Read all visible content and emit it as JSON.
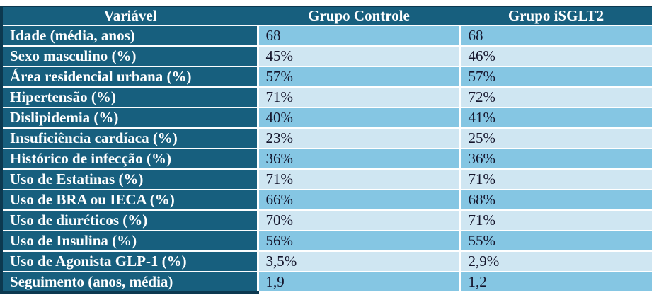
{
  "table": {
    "headers": {
      "variable": "Variável",
      "controle": "Grupo Controle",
      "isglt2": "Grupo iSGLT2"
    },
    "rows": [
      {
        "label": "Idade (média, anos)",
        "controle": "68",
        "isglt2": "68"
      },
      {
        "label": "Sexo masculino (%)",
        "controle": "45%",
        "isglt2": "46%"
      },
      {
        "label": "Área residencial urbana (%)",
        "controle": "57%",
        "isglt2": "57%"
      },
      {
        "label": "Hipertensão (%)",
        "controle": "71%",
        "isglt2": "72%"
      },
      {
        "label": "Dislipidemia (%)",
        "controle": "40%",
        "isglt2": "41%"
      },
      {
        "label": "Insuficiência cardíaca (%)",
        "controle": "23%",
        "isglt2": "25%"
      },
      {
        "label": "Histórico de infecção (%)",
        "controle": "36%",
        "isglt2": "36%"
      },
      {
        "label": "Uso de Estatinas (%)",
        "controle": "71%",
        "isglt2": "71%"
      },
      {
        "label": "Uso de BRA ou IECA (%)",
        "controle": "66%",
        "isglt2": "68%"
      },
      {
        "label": "Uso de diuréticos (%)",
        "controle": "70%",
        "isglt2": "71%"
      },
      {
        "label": "Uso de Insulina (%)",
        "controle": "56%",
        "isglt2": "55%"
      },
      {
        "label": "Uso de Agonista GLP-1 (%)",
        "controle": "3,5%",
        "isglt2": "2,9%"
      },
      {
        "label": "Seguimento (anos, média)",
        "controle": "1,9",
        "isglt2": "1,2"
      }
    ]
  },
  "chart_data": {
    "type": "table",
    "title": "",
    "columns": [
      "Variável",
      "Grupo Controle",
      "Grupo iSGLT2"
    ],
    "rows": [
      [
        "Idade (média, anos)",
        "68",
        "68"
      ],
      [
        "Sexo masculino (%)",
        "45%",
        "46%"
      ],
      [
        "Área residencial urbana (%)",
        "57%",
        "57%"
      ],
      [
        "Hipertensão (%)",
        "71%",
        "72%"
      ],
      [
        "Dislipidemia (%)",
        "40%",
        "41%"
      ],
      [
        "Insuficiência cardíaca (%)",
        "23%",
        "25%"
      ],
      [
        "Histórico de infecção (%)",
        "36%",
        "36%"
      ],
      [
        "Uso de Estatinas (%)",
        "71%",
        "71%"
      ],
      [
        "Uso de BRA ou IECA (%)",
        "66%",
        "68%"
      ],
      [
        "Uso de diuréticos (%)",
        "70%",
        "71%"
      ],
      [
        "Uso de Insulina (%)",
        "56%",
        "55%"
      ],
      [
        "Uso de Agonista GLP-1 (%)",
        "3,5%",
        "2,9%"
      ],
      [
        "Seguimento (anos, média)",
        "1,9",
        "1,2"
      ]
    ]
  },
  "colors": {
    "header_bg": "#175f7e",
    "label_column_bg": "#175f7e",
    "row_odd_bg": "#85c6e3",
    "row_even_bg": "#cfe6f2",
    "outer_border": "#0c3950",
    "divider": "#ffffff",
    "header_text": "#ffffff",
    "value_text": "#14142b"
  }
}
